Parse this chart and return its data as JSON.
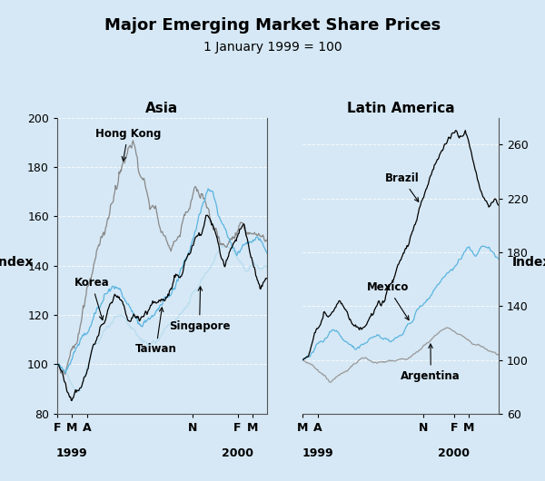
{
  "title": "Major Emerging Market Share Prices",
  "subtitle": "1 January 1999 = 100",
  "left_ylabel": "Index",
  "right_ylabel": "Index",
  "left_panel_title": "Asia",
  "right_panel_title": "Latin America",
  "left_ylim": [
    80,
    200
  ],
  "right_ylim": [
    60,
    280
  ],
  "left_yticks": [
    80,
    100,
    120,
    140,
    160,
    180,
    200
  ],
  "right_yticks": [
    60,
    100,
    140,
    180,
    220,
    260
  ],
  "background_color": "#d6e8f5",
  "colors": {
    "korea": "#000000",
    "hong_kong": "#888888",
    "taiwan": "#5ab4e0",
    "singapore": "#b8ddf0",
    "brazil": "#000000",
    "mexico": "#5ab4e0",
    "argentina": "#999999"
  },
  "left_xtick_labels": [
    "F",
    "M",
    "A",
    "N",
    "F",
    "M"
  ],
  "right_xtick_labels": [
    "M",
    "A",
    "N",
    "F",
    "M"
  ]
}
